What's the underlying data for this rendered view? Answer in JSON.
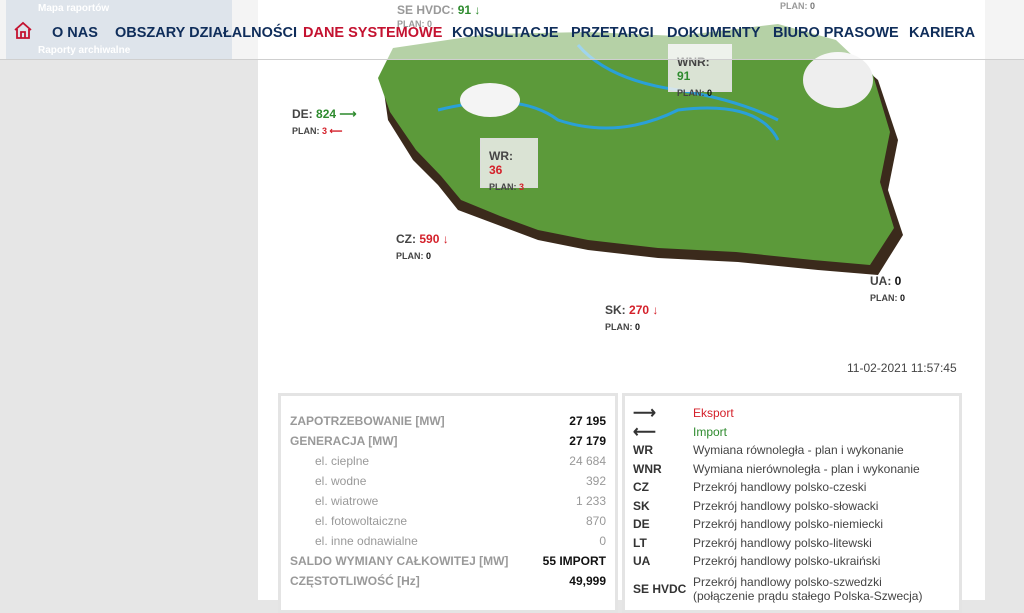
{
  "submenu": {
    "items": [
      "Mapa raportów",
      "Raporty archiwalne"
    ]
  },
  "nav": {
    "items": [
      {
        "label": "O NAS"
      },
      {
        "label": "OBSZARY DZIAŁALNOŚCI"
      },
      {
        "label": "DANE SYSTEMOWE",
        "active": true
      },
      {
        "label": "KONSULTACJE"
      },
      {
        "label": "PRZETARGI"
      },
      {
        "label": "DOKUMENTY"
      },
      {
        "label": "BIURO PRASOWE"
      },
      {
        "label": "KARIERA"
      }
    ],
    "home_icon": "home-icon"
  },
  "colors": {
    "export": "#c41230",
    "import": "#2e8b2e",
    "nav": "#0f2d5a"
  },
  "map": {
    "se": {
      "name": "SE HVDC:",
      "value": "91",
      "plan_label": "PLAN:",
      "plan": "0"
    },
    "lt": {
      "plan_label": "PLAN:",
      "plan": "0"
    },
    "wnr": {
      "name": "WNR:",
      "value": "91",
      "plan_label": "PLAN:",
      "plan": "0"
    },
    "de": {
      "name": "DE:",
      "value": "824",
      "plan_label": "PLAN:",
      "plan": "3"
    },
    "wr": {
      "name": "WR:",
      "value": "36",
      "plan_label": "PLAN:",
      "plan": "3"
    },
    "cz": {
      "name": "CZ:",
      "value": "590",
      "plan_label": "PLAN:",
      "plan": "0"
    },
    "sk": {
      "name": "SK:",
      "value": "270",
      "plan_label": "PLAN:",
      "plan": "0"
    },
    "ua": {
      "name": "UA:",
      "value": "0",
      "plan_label": "PLAN:",
      "plan": "0"
    },
    "timestamp": "11-02-2021 11:57:45"
  },
  "stats": [
    {
      "label": "ZAPOTRZEBOWANIE [MW]",
      "value": "27 195"
    },
    {
      "label": "GENERACJA [MW]",
      "value": "27 179"
    },
    {
      "label": "el. cieplne",
      "value": "24 684",
      "sub": true
    },
    {
      "label": "el. wodne",
      "value": "392",
      "sub": true
    },
    {
      "label": "el. wiatrowe",
      "value": "1 233",
      "sub": true
    },
    {
      "label": "el. fotowoltaiczne",
      "value": "870",
      "sub": true
    },
    {
      "label": "el. inne odnawialne",
      "value": "0",
      "sub": true
    },
    {
      "label": "SALDO WYMIANY CAŁKOWITEJ [MW]",
      "value": "55 IMPORT"
    },
    {
      "label": "CZĘSTOTLIWOŚĆ [Hz]",
      "value": "49,999"
    }
  ],
  "legend": {
    "export": "Eksport",
    "import": "Import",
    "items": [
      {
        "key": "WR",
        "desc": "Wymiana równoległa - plan i wykonanie"
      },
      {
        "key": "WNR",
        "desc": "Wymiana nierównoległa - plan i wykonanie"
      },
      {
        "key": "CZ",
        "desc": "Przekrój handlowy polsko-czeski"
      },
      {
        "key": "SK",
        "desc": "Przekrój handlowy polsko-słowacki"
      },
      {
        "key": "DE",
        "desc": "Przekrój handlowy polsko-niemiecki"
      },
      {
        "key": "LT",
        "desc": "Przekrój handlowy polsko-litewski"
      },
      {
        "key": "UA",
        "desc": "Przekrój handlowy polsko-ukraiński"
      },
      {
        "key": "SE HVDC",
        "desc": "Przekrój handlowy polsko-szwedzki",
        "desc2": "(połączenie prądu stałego Polska-Szwecja)"
      }
    ]
  }
}
